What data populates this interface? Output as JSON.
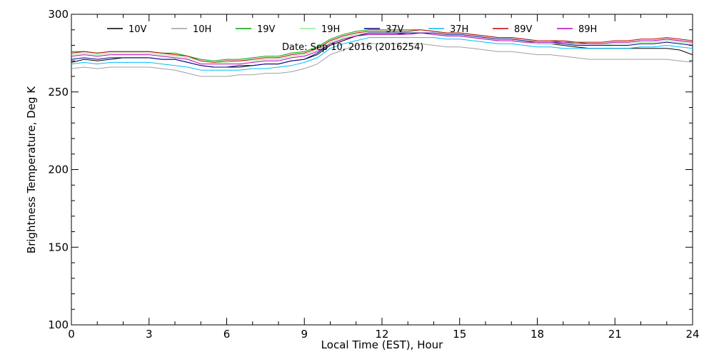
{
  "chart_data": {
    "type": "line",
    "title": "",
    "annotation": "Date: Sep 10, 2016 (2016254)",
    "xlabel": "Local Time (EST), Hour",
    "ylabel": "Brightness Temperature, Deg K",
    "xlim": [
      0,
      24
    ],
    "ylim": [
      100,
      300
    ],
    "xticks": [
      0,
      3,
      6,
      9,
      12,
      15,
      18,
      21,
      24
    ],
    "yticks": [
      100,
      150,
      200,
      250,
      300
    ],
    "grid": false,
    "legend_position": "top",
    "x": [
      0,
      0.5,
      1,
      1.5,
      2,
      2.5,
      3,
      3.5,
      4,
      4.5,
      5,
      5.5,
      6,
      6.5,
      7,
      7.5,
      8,
      8.5,
      9,
      9.5,
      10,
      10.5,
      11,
      11.5,
      12,
      12.5,
      13,
      13.5,
      14,
      14.5,
      15,
      15.5,
      16,
      16.5,
      17,
      17.5,
      18,
      18.5,
      19,
      19.5,
      20,
      20.5,
      21,
      21.5,
      22,
      22.5,
      23,
      23.5,
      24
    ],
    "series": [
      {
        "name": "10V",
        "color": "#000000",
        "values": [
          269,
          271,
          270,
          271,
          272,
          272,
          272,
          271,
          271,
          269,
          267,
          266,
          266,
          266,
          267,
          268,
          268,
          270,
          271,
          274,
          280,
          283,
          286,
          287,
          287,
          287,
          288,
          288,
          287,
          286,
          286,
          285,
          284,
          283,
          283,
          282,
          281,
          281,
          280,
          279,
          278,
          278,
          278,
          278,
          278,
          278,
          278,
          277,
          274
        ]
      },
      {
        "name": "10H",
        "color": "#a0a0a0",
        "values": [
          265,
          266,
          265,
          266,
          266,
          266,
          266,
          265,
          264,
          262,
          260,
          260,
          260,
          261,
          261,
          262,
          262,
          263,
          265,
          268,
          274,
          277,
          280,
          281,
          281,
          281,
          281,
          281,
          280,
          279,
          279,
          278,
          277,
          276,
          276,
          275,
          274,
          274,
          273,
          272,
          271,
          271,
          271,
          271,
          271,
          271,
          271,
          270,
          269
        ]
      },
      {
        "name": "19V",
        "color": "#00a000",
        "values": [
          276,
          276,
          275,
          276,
          276,
          276,
          276,
          275,
          275,
          273,
          271,
          270,
          271,
          271,
          272,
          273,
          273,
          275,
          276,
          279,
          284,
          287,
          289,
          290,
          290,
          290,
          290,
          290,
          289,
          288,
          288,
          287,
          286,
          285,
          285,
          284,
          283,
          283,
          282,
          282,
          281,
          281,
          282,
          282,
          283,
          283,
          284,
          283,
          282
        ]
      },
      {
        "name": "19H",
        "color": "#90ee90",
        "values": [
          274,
          275,
          274,
          275,
          275,
          275,
          275,
          274,
          273,
          272,
          270,
          269,
          269,
          270,
          270,
          271,
          271,
          273,
          274,
          277,
          282,
          285,
          287,
          288,
          288,
          288,
          288,
          288,
          287,
          286,
          286,
          285,
          284,
          283,
          283,
          282,
          281,
          281,
          281,
          280,
          280,
          280,
          281,
          281,
          282,
          282,
          283,
          282,
          281
        ]
      },
      {
        "name": "37V",
        "color": "#00008b",
        "values": [
          271,
          272,
          271,
          272,
          272,
          272,
          272,
          271,
          271,
          269,
          267,
          266,
          266,
          267,
          267,
          268,
          268,
          270,
          271,
          275,
          281,
          284,
          286,
          288,
          288,
          288,
          288,
          288,
          288,
          287,
          287,
          286,
          285,
          284,
          284,
          283,
          282,
          282,
          281,
          280,
          280,
          280,
          280,
          280,
          281,
          281,
          282,
          281,
          280
        ]
      },
      {
        "name": "37H",
        "color": "#00bfff",
        "values": [
          268,
          269,
          268,
          269,
          269,
          269,
          269,
          268,
          267,
          266,
          264,
          264,
          264,
          264,
          265,
          265,
          266,
          267,
          269,
          272,
          278,
          281,
          283,
          285,
          285,
          285,
          285,
          285,
          285,
          284,
          284,
          283,
          282,
          281,
          281,
          280,
          279,
          279,
          278,
          278,
          278,
          278,
          278,
          278,
          279,
          279,
          280,
          279,
          278
        ]
      },
      {
        "name": "89V",
        "color": "#c00000",
        "values": [
          275,
          276,
          275,
          276,
          276,
          276,
          276,
          275,
          274,
          273,
          270,
          269,
          270,
          270,
          271,
          272,
          272,
          274,
          275,
          278,
          283,
          286,
          288,
          289,
          289,
          289,
          289,
          290,
          289,
          288,
          288,
          287,
          286,
          285,
          285,
          284,
          283,
          283,
          283,
          282,
          282,
          282,
          283,
          283,
          284,
          284,
          285,
          284,
          283
        ]
      },
      {
        "name": "89H",
        "color": "#c000c0",
        "values": [
          273,
          274,
          273,
          274,
          274,
          274,
          274,
          273,
          272,
          271,
          268,
          268,
          268,
          268,
          269,
          270,
          270,
          272,
          273,
          276,
          281,
          284,
          286,
          287,
          287,
          287,
          287,
          288,
          287,
          286,
          286,
          285,
          284,
          283,
          283,
          282,
          282,
          282,
          282,
          281,
          281,
          281,
          282,
          282,
          283,
          283,
          284,
          283,
          282
        ]
      }
    ]
  }
}
